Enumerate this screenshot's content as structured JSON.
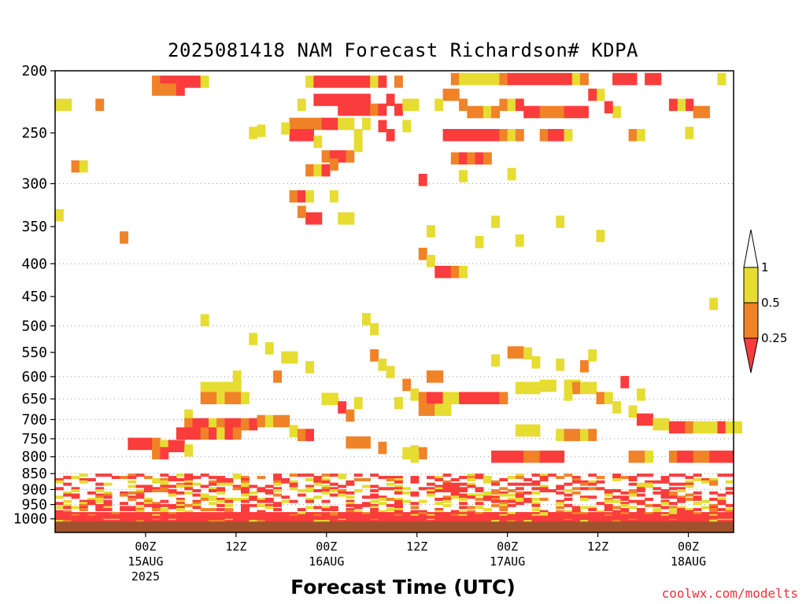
{
  "title": "2025081418 NAM Forecast Richardson# KDPA",
  "xlabel": "Forecast Time (UTC)",
  "credit": "coolwx.com/modelts",
  "colors": {
    "lt_025": "#fa3c3c",
    "025_05": "#f08228",
    "05_1": "#e6dc32",
    "ground": "#a0522d",
    "grid": "#999999"
  },
  "chart_data": {
    "type": "heatmap",
    "title": "2025081418 NAM Forecast Richardson# KDPA",
    "xlabel": "Forecast Time (UTC)",
    "ylabel": "",
    "y_scale": "log-pressure (inverted)",
    "ylim": [
      1050,
      200
    ],
    "xlim_hours": [
      -6,
      84
    ],
    "y_ticks": [
      200,
      250,
      300,
      350,
      400,
      450,
      500,
      550,
      600,
      650,
      700,
      750,
      800,
      850,
      900,
      950,
      1000
    ],
    "gridlines": [
      300,
      400,
      500,
      600,
      650,
      700,
      750,
      800,
      850,
      900,
      950,
      1000
    ],
    "x_ticks": [
      {
        "hour": 6,
        "label": "00Z",
        "date": "15AUG",
        "year": "2025"
      },
      {
        "hour": 18,
        "label": "12Z",
        "date": "",
        "year": ""
      },
      {
        "hour": 30,
        "label": "00Z",
        "date": "16AUG",
        "year": ""
      },
      {
        "hour": 42,
        "label": "12Z",
        "date": "",
        "year": ""
      },
      {
        "hour": 54,
        "label": "00Z",
        "date": "17AUG",
        "year": ""
      },
      {
        "hour": 66,
        "label": "12Z",
        "date": "",
        "year": ""
      },
      {
        "hour": 78,
        "label": "00Z",
        "date": "18AUG",
        "year": ""
      }
    ],
    "colorbar": {
      "levels": [
        0.25,
        0.5,
        1
      ],
      "labels": [
        "0.25",
        "0.5",
        "1"
      ],
      "bins": [
        "<0.25",
        "0.25-0.5",
        "0.5-1"
      ]
    },
    "cells": [
      [
        12,
        208,
        2
      ],
      [
        13,
        208,
        3
      ],
      [
        14,
        208,
        3
      ],
      [
        15,
        208,
        3
      ],
      [
        16,
        208,
        3
      ],
      [
        17,
        208,
        3
      ],
      [
        18,
        208,
        1
      ],
      [
        12,
        214,
        2
      ],
      [
        13,
        214,
        2
      ],
      [
        14,
        214,
        2
      ],
      [
        15,
        214,
        3
      ],
      [
        31,
        208,
        1
      ],
      [
        32,
        208,
        3
      ],
      [
        33,
        208,
        3
      ],
      [
        34,
        208,
        3
      ],
      [
        35,
        208,
        3
      ],
      [
        36,
        208,
        3
      ],
      [
        37,
        208,
        3
      ],
      [
        38,
        208,
        3
      ],
      [
        39,
        208,
        1
      ],
      [
        40,
        208,
        3
      ],
      [
        42,
        208,
        2
      ],
      [
        32,
        222,
        3
      ],
      [
        33,
        222,
        3
      ],
      [
        34,
        222,
        3
      ],
      [
        35,
        222,
        3
      ],
      [
        36,
        222,
        3
      ],
      [
        37,
        222,
        3
      ],
      [
        38,
        222,
        3
      ],
      [
        30,
        226,
        1
      ],
      [
        35,
        230,
        3
      ],
      [
        36,
        230,
        3
      ],
      [
        37,
        230,
        3
      ],
      [
        38,
        230,
        3
      ],
      [
        39,
        230,
        2
      ],
      [
        40,
        230,
        3
      ],
      [
        41,
        222,
        3
      ],
      [
        42,
        230,
        3
      ],
      [
        29,
        242,
        2
      ],
      [
        30,
        242,
        2
      ],
      [
        31,
        242,
        2
      ],
      [
        32,
        242,
        2
      ],
      [
        33,
        242,
        3
      ],
      [
        34,
        242,
        3
      ],
      [
        35,
        242,
        1
      ],
      [
        36,
        242,
        1
      ],
      [
        38,
        242,
        1
      ],
      [
        40,
        244,
        3
      ],
      [
        29,
        252,
        3
      ],
      [
        30,
        252,
        3
      ],
      [
        31,
        252,
        3
      ],
      [
        32,
        258,
        1
      ],
      [
        33,
        272,
        2
      ],
      [
        34,
        272,
        3
      ],
      [
        35,
        272,
        3
      ],
      [
        36,
        272,
        2
      ],
      [
        37,
        262,
        1
      ],
      [
        37,
        252,
        1
      ],
      [
        31,
        286,
        2
      ],
      [
        32,
        286,
        1
      ],
      [
        33,
        286,
        3
      ],
      [
        34,
        280,
        2
      ],
      [
        29,
        314,
        2
      ],
      [
        30,
        314,
        3
      ],
      [
        31,
        314,
        1
      ],
      [
        31,
        340,
        3
      ],
      [
        32,
        340,
        3
      ],
      [
        30,
        332,
        2
      ],
      [
        34,
        314,
        1
      ],
      [
        35,
        340,
        1
      ],
      [
        36,
        340,
        1
      ],
      [
        24,
        250,
        1
      ],
      [
        25,
        248,
        1
      ],
      [
        28,
        246,
        1
      ],
      [
        49,
        206,
        2
      ],
      [
        50,
        206,
        1
      ],
      [
        51,
        206,
        1
      ],
      [
        52,
        206,
        1
      ],
      [
        53,
        206,
        1
      ],
      [
        54,
        206,
        1
      ],
      [
        55,
        206,
        2
      ],
      [
        56,
        206,
        3
      ],
      [
        57,
        206,
        3
      ],
      [
        58,
        206,
        3
      ],
      [
        59,
        206,
        3
      ],
      [
        60,
        206,
        3
      ],
      [
        61,
        206,
        3
      ],
      [
        62,
        206,
        3
      ],
      [
        63,
        206,
        3
      ],
      [
        64,
        206,
        1
      ],
      [
        65,
        206,
        2
      ],
      [
        48,
        218,
        2
      ],
      [
        49,
        218,
        2
      ],
      [
        50,
        226,
        2
      ],
      [
        51,
        232,
        2
      ],
      [
        52,
        232,
        2
      ],
      [
        53,
        232,
        1
      ],
      [
        54,
        232,
        2
      ],
      [
        55,
        226,
        2
      ],
      [
        56,
        226,
        1
      ],
      [
        57,
        226,
        3
      ],
      [
        58,
        232,
        3
      ],
      [
        59,
        232,
        3
      ],
      [
        60,
        232,
        2
      ],
      [
        61,
        232,
        2
      ],
      [
        62,
        232,
        2
      ],
      [
        63,
        232,
        3
      ],
      [
        64,
        232,
        3
      ],
      [
        65,
        232,
        3
      ],
      [
        48,
        252,
        3
      ],
      [
        49,
        252,
        3
      ],
      [
        50,
        252,
        3
      ],
      [
        51,
        252,
        3
      ],
      [
        52,
        252,
        3
      ],
      [
        53,
        252,
        3
      ],
      [
        54,
        252,
        3
      ],
      [
        55,
        252,
        2
      ],
      [
        56,
        252,
        1
      ],
      [
        57,
        252,
        2
      ],
      [
        60,
        252,
        2
      ],
      [
        61,
        252,
        3
      ],
      [
        62,
        252,
        3
      ],
      [
        63,
        252,
        1
      ],
      [
        49,
        274,
        2
      ],
      [
        50,
        274,
        3
      ],
      [
        51,
        274,
        2
      ],
      [
        52,
        274,
        3
      ],
      [
        53,
        274,
        2
      ],
      [
        50,
        292,
        1
      ],
      [
        47,
        226,
        1
      ],
      [
        44,
        226,
        1
      ],
      [
        69,
        206,
        3
      ],
      [
        70,
        206,
        3
      ],
      [
        71,
        206,
        3
      ],
      [
        73,
        206,
        3
      ],
      [
        74,
        206,
        3
      ],
      [
        78,
        226,
        3
      ],
      [
        79,
        232,
        2
      ],
      [
        80,
        232,
        2
      ],
      [
        77,
        226,
        1
      ],
      [
        78,
        250,
        1
      ],
      [
        71,
        252,
        2
      ],
      [
        72,
        252,
        1
      ],
      [
        76,
        226,
        3
      ],
      [
        69,
        232,
        1
      ],
      [
        68,
        228,
        3
      ],
      [
        67,
        218,
        1
      ],
      [
        66,
        218,
        3
      ],
      [
        82,
        206,
        1
      ],
      [
        0,
        226,
        1
      ],
      [
        1,
        226,
        1
      ],
      [
        5,
        226,
        2
      ],
      [
        2,
        282,
        2
      ],
      [
        3,
        282,
        1
      ],
      [
        0,
        336,
        1
      ],
      [
        8,
        364,
        2
      ],
      [
        41,
        252,
        3
      ],
      [
        43,
        226,
        1
      ],
      [
        43,
        244,
        1
      ],
      [
        45,
        296,
        3
      ],
      [
        46,
        356,
        1
      ],
      [
        45,
        386,
        2
      ],
      [
        46,
        396,
        1
      ],
      [
        47,
        412,
        3
      ],
      [
        48,
        412,
        3
      ],
      [
        49,
        412,
        2
      ],
      [
        50,
        412,
        1
      ],
      [
        56,
        290,
        1
      ],
      [
        54,
        344,
        1
      ],
      [
        62,
        344,
        1
      ],
      [
        57,
        368,
        1
      ],
      [
        52,
        370,
        1
      ],
      [
        67,
        362,
        1
      ],
      [
        81,
        462,
        1
      ],
      [
        18,
        490,
        1
      ],
      [
        38,
        488,
        1
      ],
      [
        39,
        506,
        1
      ],
      [
        24,
        524,
        1
      ],
      [
        26,
        542,
        1
      ],
      [
        28,
        560,
        1
      ],
      [
        29,
        560,
        1
      ],
      [
        31,
        580,
        1
      ],
      [
        27,
        600,
        2
      ],
      [
        22,
        600,
        1
      ],
      [
        39,
        556,
        2
      ],
      [
        40,
        575,
        1
      ],
      [
        41,
        590,
        1
      ],
      [
        46,
        600,
        2
      ],
      [
        47,
        600,
        2
      ],
      [
        43,
        618,
        2
      ],
      [
        44,
        640,
        1
      ],
      [
        56,
        550,
        2
      ],
      [
        57,
        550,
        2
      ],
      [
        58,
        552,
        1
      ],
      [
        54,
        566,
        1
      ],
      [
        59,
        570,
        1
      ],
      [
        62,
        575,
        1
      ],
      [
        65,
        578,
        2
      ],
      [
        66,
        556,
        1
      ],
      [
        60,
        620,
        1
      ],
      [
        61,
        620,
        1
      ],
      [
        63,
        620,
        1
      ],
      [
        64,
        620,
        1
      ],
      [
        18,
        625,
        1
      ],
      [
        19,
        625,
        1
      ],
      [
        20,
        625,
        1
      ],
      [
        21,
        625,
        1
      ],
      [
        22,
        625,
        1
      ],
      [
        18,
        648,
        2
      ],
      [
        19,
        648,
        2
      ],
      [
        20,
        648,
        1
      ],
      [
        21,
        648,
        2
      ],
      [
        22,
        648,
        2
      ],
      [
        23,
        648,
        1
      ],
      [
        16,
        690,
        1
      ],
      [
        16,
        712,
        2
      ],
      [
        17,
        712,
        3
      ],
      [
        18,
        712,
        3
      ],
      [
        19,
        712,
        1
      ],
      [
        20,
        712,
        2
      ],
      [
        21,
        712,
        3
      ],
      [
        22,
        712,
        3
      ],
      [
        23,
        712,
        2
      ],
      [
        24,
        712,
        3
      ],
      [
        15,
        736,
        3
      ],
      [
        16,
        736,
        3
      ],
      [
        17,
        736,
        3
      ],
      [
        18,
        736,
        2
      ],
      [
        19,
        736,
        3
      ],
      [
        20,
        736,
        1
      ],
      [
        21,
        736,
        3
      ],
      [
        22,
        736,
        2
      ],
      [
        9,
        764,
        3
      ],
      [
        10,
        764,
        3
      ],
      [
        11,
        764,
        3
      ],
      [
        12,
        764,
        2
      ],
      [
        13,
        770,
        1
      ],
      [
        14,
        770,
        3
      ],
      [
        15,
        770,
        3
      ],
      [
        16,
        782,
        1
      ],
      [
        12,
        790,
        2
      ],
      [
        13,
        790,
        3
      ],
      [
        25,
        704,
        2
      ],
      [
        26,
        704,
        1
      ],
      [
        27,
        704,
        2
      ],
      [
        28,
        704,
        2
      ],
      [
        29,
        730,
        1
      ],
      [
        30,
        740,
        2
      ],
      [
        31,
        740,
        3
      ],
      [
        33,
        650,
        1
      ],
      [
        34,
        650,
        1
      ],
      [
        35,
        670,
        3
      ],
      [
        36,
        690,
        2
      ],
      [
        37,
        660,
        1
      ],
      [
        45,
        648,
        2
      ],
      [
        46,
        648,
        3
      ],
      [
        47,
        648,
        3
      ],
      [
        48,
        648,
        1
      ],
      [
        49,
        648,
        1
      ],
      [
        50,
        648,
        3
      ],
      [
        51,
        648,
        3
      ],
      [
        52,
        648,
        3
      ],
      [
        53,
        648,
        3
      ],
      [
        54,
        648,
        3
      ],
      [
        55,
        648,
        2
      ],
      [
        45,
        676,
        2
      ],
      [
        46,
        676,
        2
      ],
      [
        47,
        676,
        1
      ],
      [
        48,
        676,
        1
      ],
      [
        42,
        660,
        1
      ],
      [
        57,
        625,
        1
      ],
      [
        58,
        625,
        1
      ],
      [
        59,
        625,
        1
      ],
      [
        64,
        625,
        2
      ],
      [
        65,
        625,
        1
      ],
      [
        66,
        625,
        1
      ],
      [
        67,
        648,
        2
      ],
      [
        68,
        648,
        1
      ],
      [
        63,
        640,
        1
      ],
      [
        70,
        612,
        3
      ],
      [
        72,
        640,
        1
      ],
      [
        69,
        670,
        1
      ],
      [
        71,
        680,
        1
      ],
      [
        72,
        700,
        3
      ],
      [
        73,
        700,
        3
      ],
      [
        74,
        712,
        1
      ],
      [
        75,
        712,
        1
      ],
      [
        76,
        720,
        3
      ],
      [
        77,
        720,
        3
      ],
      [
        78,
        720,
        2
      ],
      [
        79,
        720,
        1
      ],
      [
        80,
        720,
        1
      ],
      [
        81,
        720,
        1
      ],
      [
        82,
        720,
        3
      ],
      [
        83,
        720,
        1
      ],
      [
        84,
        720,
        1
      ],
      [
        57,
        728,
        1
      ],
      [
        58,
        728,
        1
      ],
      [
        59,
        728,
        1
      ],
      [
        62,
        740,
        1
      ],
      [
        63,
        740,
        2
      ],
      [
        64,
        740,
        2
      ],
      [
        65,
        740,
        1
      ],
      [
        66,
        740,
        2
      ],
      [
        44,
        785,
        1
      ],
      [
        43,
        790,
        1
      ],
      [
        45,
        790,
        2
      ],
      [
        44,
        800,
        1
      ],
      [
        40,
        775,
        2
      ],
      [
        36,
        760,
        2
      ],
      [
        37,
        760,
        2
      ],
      [
        38,
        760,
        2
      ],
      [
        54,
        800,
        3
      ],
      [
        55,
        800,
        3
      ],
      [
        56,
        800,
        3
      ],
      [
        57,
        800,
        3
      ],
      [
        58,
        800,
        2
      ],
      [
        59,
        800,
        2
      ],
      [
        60,
        800,
        3
      ],
      [
        61,
        800,
        3
      ],
      [
        62,
        800,
        3
      ],
      [
        71,
        800,
        2
      ],
      [
        72,
        800,
        2
      ],
      [
        73,
        800,
        1
      ],
      [
        76,
        800,
        2
      ],
      [
        77,
        800,
        3
      ],
      [
        78,
        800,
        3
      ],
      [
        79,
        800,
        2
      ],
      [
        80,
        800,
        2
      ],
      [
        81,
        800,
        3
      ],
      [
        82,
        800,
        3
      ],
      [
        83,
        800,
        3
      ]
    ],
    "surface_layer_pressure": [
      850,
      1050
    ],
    "ground_pressure": [
      1010,
      1050
    ]
  }
}
